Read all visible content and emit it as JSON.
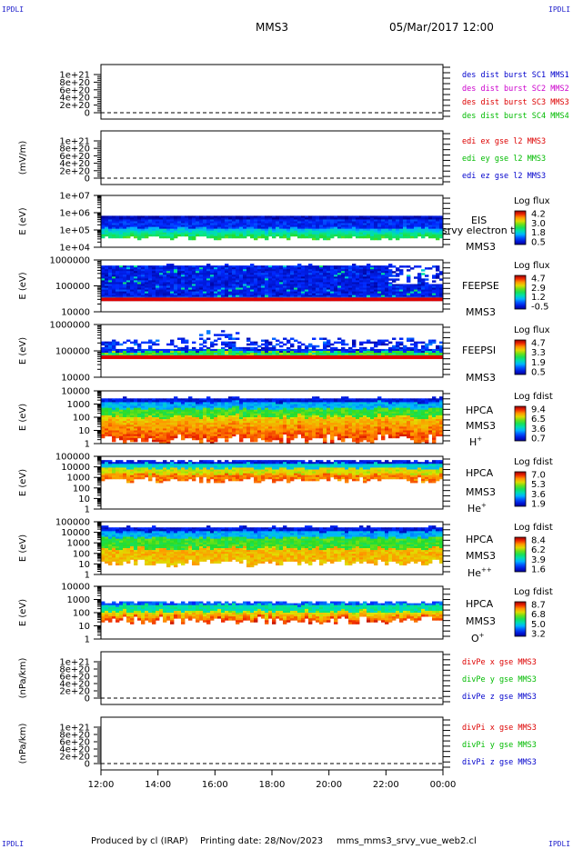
{
  "corner_label": "IPDLI",
  "header": {
    "spacecraft": "MMS3",
    "datetime": "05/Mar/2017 12:00"
  },
  "footer": {
    "produced_by": "Produced by cl (IRAP)",
    "printing_date": "Printing date: 28/Nov/2023",
    "filename": "mms_mms3_srvy_vue_web2.cl"
  },
  "chart_data": [
    {
      "type": "line",
      "id": "des",
      "ylabel": "",
      "ylim": [
        0,
        1.2e+21
      ],
      "yticks": [
        "0",
        "2e+20",
        "4e+20",
        "6e+20",
        "8e+20",
        "1e+21"
      ],
      "legend": [
        {
          "text": "des dist burst SC1 MMS1",
          "color": "#0000cc"
        },
        {
          "text": "des dist burst SC2 MMS2",
          "color": "#cc00cc"
        },
        {
          "text": "des dist burst SC3 MMS3",
          "color": "#dd0000"
        },
        {
          "text": "des dist burst SC4 MMS4",
          "color": "#00bb00"
        }
      ]
    },
    {
      "type": "line",
      "id": "edi",
      "ylabel": "(mV/m)",
      "ylim": [
        0,
        1.2e+21
      ],
      "yticks": [
        "0",
        "2e+20",
        "4e+20",
        "6e+20",
        "8e+20",
        "1e+21"
      ],
      "legend": [
        {
          "text": "edi ex gse l2 MMS3",
          "color": "#dd0000"
        },
        {
          "text": "edi ey gse l2 MMS3",
          "color": "#00bb00"
        },
        {
          "text": "edi ez gse l2 MMS3",
          "color": "#0000cc"
        }
      ]
    },
    {
      "type": "heatmap",
      "id": "eis",
      "ylabel": "E (eV)",
      "yscale": "log",
      "yticks": [
        "1e+04",
        "1e+05",
        "1e+06",
        "1e+07"
      ],
      "labels": [
        "EIS",
        "MMS3"
      ],
      "overlay": "srvy electron to",
      "colorbar": {
        "title": "Log flux",
        "ticks": [
          "4.2",
          "3.0",
          "1.8",
          "0.5"
        ]
      }
    },
    {
      "type": "heatmap",
      "id": "feepse",
      "ylabel": "E (eV)",
      "yscale": "log",
      "yticks": [
        "10000",
        "100000",
        "1000000"
      ],
      "labels": [
        "FEEPSE",
        "MMS3"
      ],
      "colorbar": {
        "title": "Log flux",
        "ticks": [
          "4.7",
          "2.9",
          "1.2",
          "-0.5"
        ]
      }
    },
    {
      "type": "heatmap",
      "id": "feepsi",
      "ylabel": "E (eV)",
      "yscale": "log",
      "yticks": [
        "10000",
        "100000",
        "1000000"
      ],
      "labels": [
        "FEEPSI",
        "MMS3"
      ],
      "colorbar": {
        "title": "Log flux",
        "ticks": [
          "4.7",
          "3.3",
          "1.9",
          "0.5"
        ]
      }
    },
    {
      "type": "heatmap",
      "id": "hpca_h",
      "ylabel": "E (eV)",
      "yscale": "log",
      "yticks": [
        "1",
        "10",
        "100",
        "1000",
        "10000"
      ],
      "labels": [
        "HPCA",
        "MMS3"
      ],
      "species": "H",
      "charge": "+",
      "colorbar": {
        "title": "Log fdist",
        "ticks": [
          "9.4",
          "6.5",
          "3.6",
          "0.7"
        ]
      }
    },
    {
      "type": "heatmap",
      "id": "hpca_he1",
      "ylabel": "E (eV)",
      "yscale": "log",
      "yticks": [
        "1",
        "10",
        "100",
        "1000",
        "10000",
        "100000"
      ],
      "labels": [
        "HPCA",
        "MMS3"
      ],
      "species": "He",
      "charge": "+",
      "colorbar": {
        "title": "Log fdist",
        "ticks": [
          "7.0",
          "5.3",
          "3.6",
          "1.9"
        ]
      }
    },
    {
      "type": "heatmap",
      "id": "hpca_he2",
      "ylabel": "E (eV)",
      "yscale": "log",
      "yticks": [
        "1",
        "10",
        "100",
        "1000",
        "10000",
        "100000"
      ],
      "labels": [
        "HPCA",
        "MMS3"
      ],
      "species": "He",
      "charge": "++",
      "colorbar": {
        "title": "Log fdist",
        "ticks": [
          "8.4",
          "6.2",
          "3.9",
          "1.6"
        ]
      }
    },
    {
      "type": "heatmap",
      "id": "hpca_o",
      "ylabel": "E (eV)",
      "yscale": "log",
      "yticks": [
        "1",
        "10",
        "100",
        "1000",
        "10000"
      ],
      "labels": [
        "HPCA",
        "MMS3"
      ],
      "species": "O",
      "charge": "+",
      "colorbar": {
        "title": "Log fdist",
        "ticks": [
          "8.7",
          "6.8",
          "5.0",
          "3.2"
        ]
      }
    },
    {
      "type": "line",
      "id": "divpe",
      "ylabel": "(nPa/km)",
      "ylim": [
        0,
        1.2e+21
      ],
      "yticks": [
        "0",
        "2e+20",
        "4e+20",
        "6e+20",
        "8e+20",
        "1e+21"
      ],
      "legend": [
        {
          "text": "divPe x gse MMS3",
          "color": "#dd0000"
        },
        {
          "text": "divPe y gse MMS3",
          "color": "#00bb00"
        },
        {
          "text": "divPe z gse MMS3",
          "color": "#0000cc"
        }
      ]
    },
    {
      "type": "line",
      "id": "divpi",
      "ylabel": "(nPa/km)",
      "ylim": [
        0,
        1.2e+21
      ],
      "yticks": [
        "0",
        "2e+20",
        "4e+20",
        "6e+20",
        "8e+20",
        "1e+21"
      ],
      "legend": [
        {
          "text": "divPi x gse MMS3",
          "color": "#dd0000"
        },
        {
          "text": "divPi y gse MMS3",
          "color": "#00bb00"
        },
        {
          "text": "divPi z gse MMS3",
          "color": "#0000cc"
        }
      ]
    }
  ],
  "x_axis": {
    "ticks": [
      "12:00",
      "14:00",
      "16:00",
      "18:00",
      "20:00",
      "22:00",
      "00:00"
    ]
  }
}
